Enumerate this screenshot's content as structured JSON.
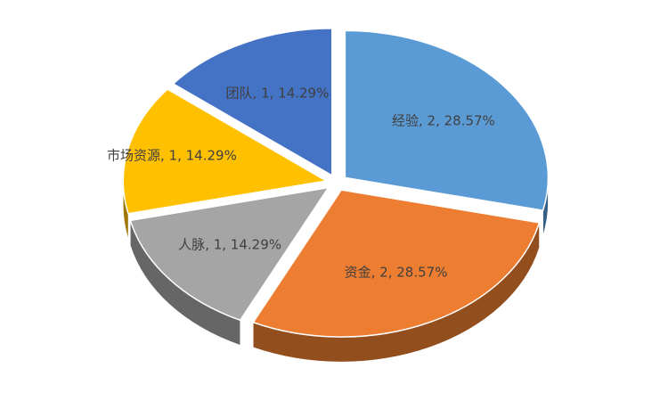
{
  "chart_data": {
    "type": "pie",
    "style": "3d-exploded",
    "categories": [
      "经验",
      "资金",
      "人脉",
      "市场资源",
      "团队"
    ],
    "values": [
      2,
      2,
      1,
      1,
      1
    ],
    "value_labels": [
      ", 2, 28.57%",
      ", 2, 28.57%",
      ", 1, 14.29%",
      ", 1, 14.29%",
      ", 1, 14.29%"
    ],
    "colors": [
      "#5b9bd5",
      "#ed7d31",
      "#a5a5a5",
      "#ffc000",
      "#4472c4"
    ]
  }
}
